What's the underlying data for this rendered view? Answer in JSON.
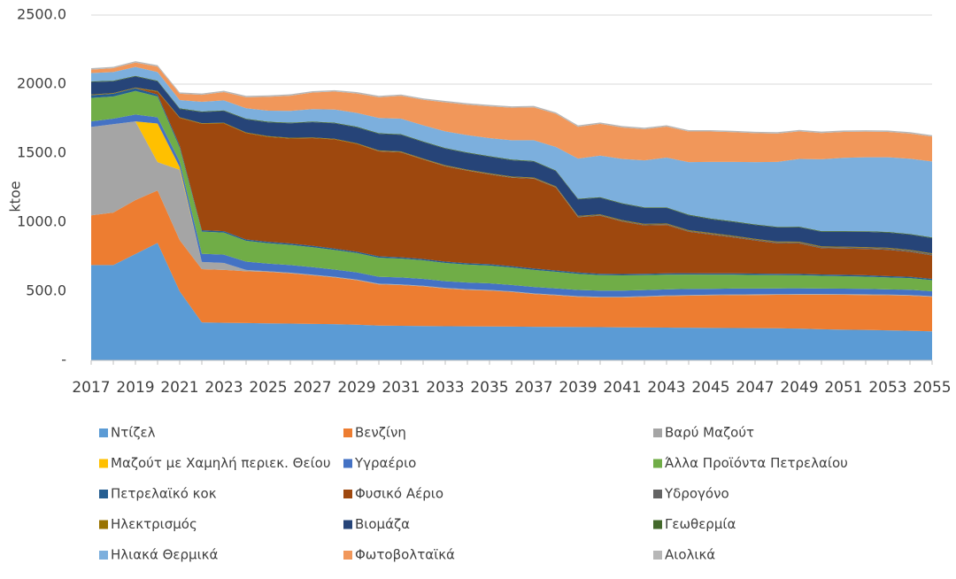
{
  "chart_data": {
    "type": "stacked_area",
    "y_label": "ktoe",
    "categories": [
      "2017",
      null,
      "2019",
      null,
      "2021",
      null,
      "2023",
      null,
      "2025",
      null,
      "2027",
      null,
      "2029",
      null,
      "2031",
      null,
      "2033",
      null,
      "2035",
      null,
      "2037",
      null,
      "2039",
      null,
      "2041",
      null,
      "2043",
      null,
      "2045",
      null,
      "2047",
      null,
      "2049",
      null,
      "2051",
      null,
      "2053",
      null,
      "2055"
    ],
    "ylim": [
      0,
      2500
    ],
    "yticks": [
      {
        "value": 0,
        "label": "-"
      },
      {
        "value": 500,
        "label": "500.0"
      },
      {
        "value": 1000,
        "label": "1000.0"
      },
      {
        "value": 1500,
        "label": "1500.0"
      },
      {
        "value": 2000,
        "label": "2000.0"
      },
      {
        "value": 2500,
        "label": "2500.0"
      }
    ],
    "grid": true,
    "legend": "bottom",
    "series": [
      {
        "name": "Ντίζελ",
        "color": "#5b9bd5",
        "values": [
          690,
          690,
          770,
          850,
          500,
          275,
          272,
          270,
          268,
          266,
          264,
          262,
          258,
          252,
          250,
          248,
          247,
          246,
          245,
          244,
          243,
          242,
          241,
          240,
          239,
          238,
          237,
          236,
          235,
          234,
          233,
          232,
          230,
          225,
          222,
          220,
          217,
          214,
          210
        ]
      },
      {
        "name": "Βενζίνη",
        "color": "#ed7d31",
        "values": [
          360,
          380,
          390,
          380,
          370,
          385,
          383,
          375,
          372,
          364,
          351,
          338,
          322,
          298,
          295,
          287,
          273,
          264,
          260,
          251,
          237,
          228,
          219,
          215,
          216,
          222,
          228,
          232,
          235,
          238,
          240,
          242,
          245,
          250,
          252,
          253,
          254,
          254,
          250
        ]
      },
      {
        "name": "Βαρύ Μαζούτ",
        "color": "#a5a5a5",
        "values": [
          640,
          640,
          570,
          205,
          510,
          52,
          50,
          10,
          5,
          5,
          5,
          5,
          5,
          5,
          5,
          5,
          5,
          5,
          5,
          5,
          5,
          5,
          5,
          5,
          5,
          5,
          5,
          5,
          5,
          5,
          5,
          5,
          5,
          5,
          5,
          5,
          5,
          5,
          5
        ]
      },
      {
        "name": "Μαζούτ με Χαμηλή περιεκ. Θείου",
        "color": "#ffc000",
        "values": [
          0,
          0,
          0,
          280,
          20,
          0,
          0,
          0,
          0,
          0,
          0,
          0,
          0,
          0,
          0,
          0,
          0,
          0,
          0,
          0,
          0,
          0,
          0,
          0,
          0,
          0,
          0,
          0,
          0,
          0,
          0,
          0,
          0,
          0,
          0,
          0,
          0,
          0,
          0
        ]
      },
      {
        "name": "Υγραέριο",
        "color": "#4472c4",
        "values": [
          40,
          40,
          50,
          45,
          40,
          60,
          60,
          60,
          55,
          55,
          55,
          52,
          52,
          50,
          50,
          50,
          48,
          48,
          48,
          46,
          46,
          46,
          45,
          45,
          45,
          44,
          44,
          44,
          43,
          43,
          42,
          42,
          42,
          40,
          40,
          40,
          38,
          38,
          35
        ]
      },
      {
        "name": "Άλλα Προϊόντα Πετρελαίου",
        "color": "#70ad47",
        "values": [
          170,
          160,
          170,
          150,
          100,
          160,
          160,
          150,
          148,
          146,
          144,
          142,
          140,
          138,
          136,
          134,
          132,
          130,
          128,
          126,
          124,
          120,
          116,
          112,
          110,
          108,
          106,
          104,
          102,
          100,
          98,
          96,
          94,
          92,
          90,
          88,
          86,
          84,
          80
        ]
      },
      {
        "name": "Πετρελαϊκό κοκ",
        "color": "#255e91",
        "values": [
          20,
          20,
          20,
          15,
          15,
          10,
          10,
          10,
          10,
          10,
          10,
          10,
          10,
          10,
          10,
          10,
          10,
          10,
          10,
          10,
          10,
          10,
          10,
          10,
          10,
          10,
          10,
          10,
          10,
          10,
          10,
          10,
          10,
          10,
          10,
          10,
          10,
          10,
          10
        ]
      },
      {
        "name": "Φυσικό Αέριο",
        "color": "#9e480e",
        "values": [
          0,
          0,
          0,
          20,
          200,
          770,
          780,
          770,
          760,
          760,
          780,
          790,
          780,
          760,
          760,
          720,
          690,
          670,
          650,
          640,
          650,
          600,
          400,
          420,
          380,
          350,
          350,
          300,
          280,
          260,
          240,
          220,
          220,
          190,
          190,
          190,
          190,
          180,
          170
        ]
      },
      {
        "name": "Υδρογόνο",
        "color": "#636363",
        "values": [
          0,
          0,
          0,
          0,
          0,
          0,
          0,
          0,
          0,
          0,
          0,
          0,
          0,
          2,
          2,
          2,
          3,
          3,
          3,
          4,
          4,
          4,
          5,
          5,
          5,
          6,
          6,
          6,
          7,
          7,
          7,
          8,
          8,
          8,
          9,
          9,
          10,
          10,
          10
        ]
      },
      {
        "name": "Ηλεκτρισμός",
        "color": "#997300",
        "values": [
          5,
          5,
          5,
          5,
          5,
          5,
          5,
          5,
          5,
          5,
          5,
          5,
          5,
          5,
          5,
          5,
          5,
          5,
          5,
          5,
          5,
          5,
          5,
          5,
          5,
          5,
          5,
          5,
          5,
          5,
          5,
          5,
          5,
          5,
          5,
          5,
          5,
          5,
          5
        ]
      },
      {
        "name": "Βιομάζα",
        "color": "#264478",
        "values": [
          90,
          85,
          80,
          70,
          60,
          80,
          85,
          95,
          100,
          105,
          110,
          112,
          115,
          120,
          120,
          120,
          120,
          120,
          120,
          118,
          115,
          110,
          120,
          120,
          118,
          115,
          112,
          108,
          100,
          100,
          100,
          102,
          104,
          106,
          108,
          110,
          110,
          110,
          110
        ]
      },
      {
        "name": "Γεωθερμία",
        "color": "#43682b",
        "values": [
          5,
          5,
          5,
          5,
          5,
          5,
          5,
          5,
          5,
          5,
          5,
          5,
          5,
          5,
          5,
          5,
          5,
          5,
          5,
          5,
          5,
          5,
          5,
          5,
          5,
          5,
          5,
          5,
          5,
          5,
          5,
          5,
          5,
          5,
          5,
          5,
          5,
          5,
          5
        ]
      },
      {
        "name": "Ηλιακά Θερμικά",
        "color": "#7cafdd",
        "values": [
          60,
          62,
          64,
          62,
          60,
          70,
          72,
          75,
          80,
          85,
          90,
          95,
          100,
          110,
          112,
          116,
          120,
          125,
          130,
          140,
          150,
          170,
          290,
          300,
          320,
          340,
          360,
          380,
          410,
          430,
          450,
          470,
          490,
          520,
          530,
          535,
          540,
          545,
          550
        ]
      },
      {
        "name": "Φωτοβολταϊκά",
        "color": "#f1975a",
        "values": [
          25,
          28,
          32,
          40,
          45,
          50,
          60,
          80,
          100,
          110,
          120,
          130,
          140,
          150,
          165,
          185,
          210,
          220,
          230,
          235,
          238,
          240,
          230,
          230,
          228,
          226,
          224,
          222,
          220,
          215,
          210,
          205,
          200,
          190,
          188,
          186,
          184,
          182,
          180
        ]
      },
      {
        "name": "Αιολικά",
        "color": "#b7b7b7",
        "values": [
          10,
          10,
          10,
          10,
          10,
          10,
          10,
          10,
          10,
          10,
          10,
          10,
          10,
          10,
          10,
          10,
          10,
          10,
          10,
          10,
          10,
          10,
          10,
          10,
          10,
          10,
          10,
          10,
          10,
          10,
          10,
          10,
          10,
          10,
          10,
          10,
          10,
          10,
          10
        ]
      }
    ]
  }
}
